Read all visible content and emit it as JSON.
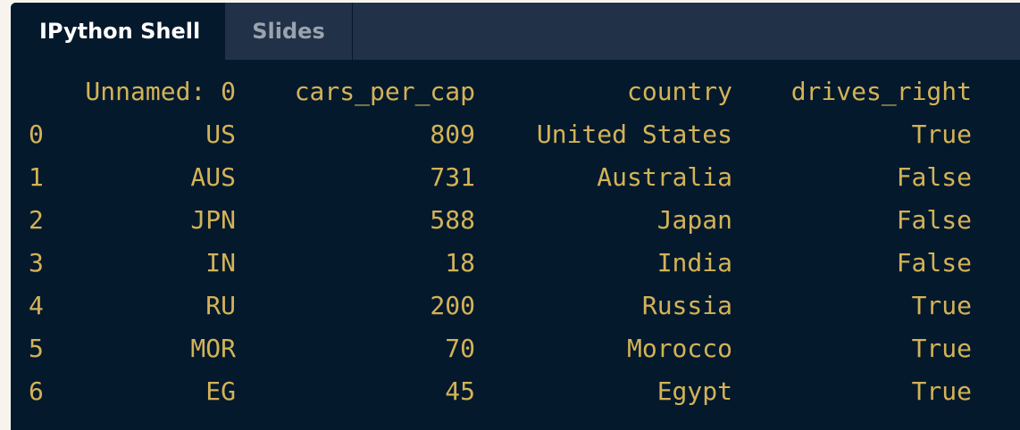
{
  "tabs": [
    {
      "label": "IPython Shell",
      "active": true
    },
    {
      "label": "Slides",
      "active": false
    }
  ],
  "table": {
    "columns": [
      "Unnamed: 0",
      "cars_per_cap",
      "country",
      "drives_right"
    ],
    "rows": [
      {
        "index": "0",
        "cells": [
          "US",
          "809",
          "United States",
          "True"
        ]
      },
      {
        "index": "1",
        "cells": [
          "AUS",
          "731",
          "Australia",
          "False"
        ]
      },
      {
        "index": "2",
        "cells": [
          "JPN",
          "588",
          "Japan",
          "False"
        ]
      },
      {
        "index": "3",
        "cells": [
          "IN",
          "18",
          "India",
          "False"
        ]
      },
      {
        "index": "4",
        "cells": [
          "RU",
          "200",
          "Russia",
          "True"
        ]
      },
      {
        "index": "5",
        "cells": [
          "MOR",
          "70",
          "Morocco",
          "True"
        ]
      },
      {
        "index": "6",
        "cells": [
          "EG",
          "45",
          "Egypt",
          "True"
        ]
      }
    ]
  },
  "colors": {
    "background": "#05192d",
    "tabbar": "#213147",
    "output_text": "#d3b356",
    "active_tab_text": "#ffffff",
    "inactive_tab_text": "#99a3ae"
  }
}
